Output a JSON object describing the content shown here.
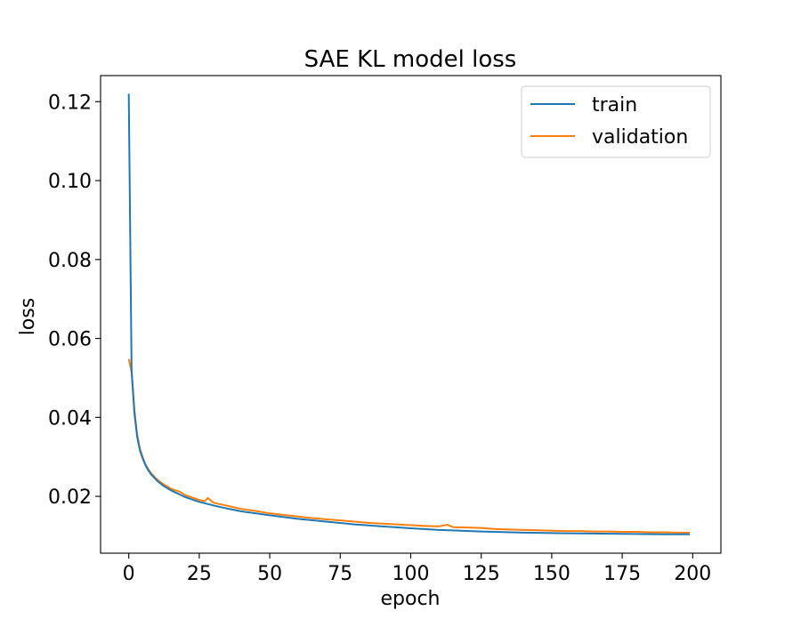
{
  "chart_data": {
    "type": "line",
    "title": "SAE KL model loss",
    "xlabel": "epoch",
    "ylabel": "loss",
    "xlim": [
      -10,
      210
    ],
    "ylim": [
      0.0056,
      0.1266
    ],
    "xticks": [
      0,
      25,
      50,
      75,
      100,
      125,
      150,
      175,
      200
    ],
    "yticks": [
      0.02,
      0.04,
      0.06,
      0.08,
      0.1,
      0.12
    ],
    "xtick_labels": [
      "0",
      "25",
      "50",
      "75",
      "100",
      "125",
      "150",
      "175",
      "200"
    ],
    "ytick_labels": [
      "0.02",
      "0.04",
      "0.06",
      "0.08",
      "0.10",
      "0.12"
    ],
    "grid": false,
    "legend_position": "top-right",
    "series": [
      {
        "name": "train",
        "color": "#1f77b4",
        "x": [
          0,
          1,
          2,
          3,
          4,
          5,
          6,
          7,
          8,
          10,
          12,
          15,
          18,
          20,
          25,
          30,
          35,
          40,
          50,
          60,
          70,
          80,
          90,
          100,
          110,
          125,
          140,
          150,
          160,
          175,
          190,
          199
        ],
        "y": [
          0.122,
          0.052,
          0.041,
          0.035,
          0.0315,
          0.0295,
          0.0278,
          0.0265,
          0.0255,
          0.024,
          0.0228,
          0.0215,
          0.0205,
          0.0198,
          0.0186,
          0.0177,
          0.0169,
          0.0162,
          0.0152,
          0.0143,
          0.0136,
          0.0129,
          0.0124,
          0.0119,
          0.0115,
          0.0111,
          0.0108,
          0.0107,
          0.0106,
          0.0105,
          0.0104,
          0.0104
        ]
      },
      {
        "name": "validation",
        "color": "#ff7f0e",
        "x": [
          0,
          1,
          2,
          3,
          4,
          5,
          6,
          7,
          8,
          10,
          12,
          15,
          18,
          20,
          25,
          27,
          28,
          30,
          35,
          40,
          45,
          50,
          55,
          60,
          65,
          70,
          75,
          80,
          85,
          90,
          95,
          100,
          105,
          110,
          113,
          115,
          120,
          125,
          130,
          135,
          140,
          145,
          150,
          155,
          160,
          165,
          170,
          175,
          180,
          185,
          190,
          195,
          199
        ],
        "y": [
          0.0548,
          0.0515,
          0.042,
          0.0355,
          0.032,
          0.0298,
          0.028,
          0.0268,
          0.0258,
          0.0243,
          0.0232,
          0.0219,
          0.0212,
          0.0203,
          0.0191,
          0.0188,
          0.0196,
          0.0184,
          0.0176,
          0.0168,
          0.0163,
          0.0157,
          0.0153,
          0.0149,
          0.0145,
          0.0142,
          0.0139,
          0.0136,
          0.0133,
          0.0131,
          0.0129,
          0.0127,
          0.0125,
          0.0124,
          0.0128,
          0.0122,
          0.0121,
          0.012,
          0.0117,
          0.0116,
          0.0115,
          0.0114,
          0.0113,
          0.0112,
          0.0112,
          0.0111,
          0.0111,
          0.011,
          0.011,
          0.0109,
          0.0109,
          0.0108,
          0.0108
        ]
      }
    ]
  }
}
